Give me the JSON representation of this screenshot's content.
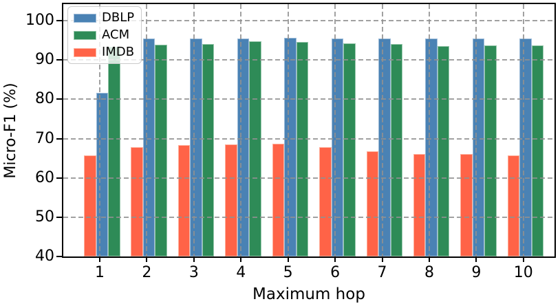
{
  "figure": {
    "background": "#ffffff",
    "frame_color": "#000000"
  },
  "chart_data": {
    "type": "bar",
    "title": "",
    "xlabel": "Maximum hop",
    "ylabel": "Micro-F1 (%)",
    "categories": [
      "1",
      "2",
      "3",
      "4",
      "5",
      "6",
      "7",
      "8",
      "9",
      "10"
    ],
    "series": [
      {
        "name": "DBLP",
        "color": "#4a82b4",
        "edge_color": "#9dbbd8",
        "values": [
          81.7,
          95.4,
          95.5,
          95.5,
          95.6,
          95.5,
          95.4,
          95.5,
          95.5,
          95.4
        ]
      },
      {
        "name": "ACM",
        "color": "#2e8b57",
        "edge_color": "#97c7ab",
        "values": [
          93.3,
          93.9,
          94.1,
          94.7,
          94.5,
          94.3,
          94.1,
          93.5,
          93.7,
          93.7
        ]
      },
      {
        "name": "IMDB",
        "color": "#ff6347",
        "edge_color": "#ffb09c",
        "values": [
          65.8,
          67.9,
          68.3,
          68.5,
          68.7,
          67.9,
          66.7,
          66.1,
          66.1,
          65.8
        ]
      }
    ],
    "bar_draw_order": [
      "IMDB",
      "DBLP",
      "ACM"
    ],
    "ylim": [
      40,
      104.2
    ],
    "yticks": [
      "40",
      "50",
      "60",
      "70",
      "80",
      "90",
      "100"
    ],
    "grid": true,
    "grid_color": "#909090",
    "legend": {
      "position": "upper-left",
      "labels": [
        "DBLP",
        "ACM",
        "IMDB"
      ]
    }
  }
}
